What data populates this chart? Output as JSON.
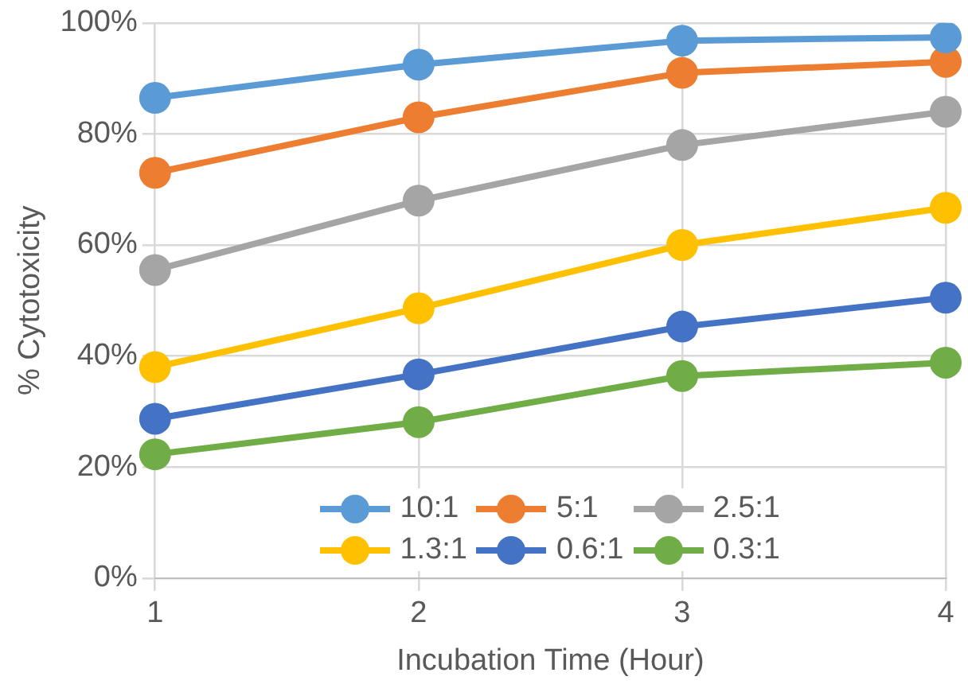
{
  "chart_data": {
    "type": "line",
    "xlabel": "Incubation Time (Hour)",
    "ylabel": "% Cytotoxicity",
    "categories": [
      "1",
      "2",
      "3",
      "4"
    ],
    "series": [
      {
        "name": "10:1",
        "color": "#5b9bd5",
        "values": [
          86.5,
          92.5,
          96.8,
          97.4
        ]
      },
      {
        "name": "5:1",
        "color": "#ed7d31",
        "values": [
          73,
          83,
          91,
          93
        ]
      },
      {
        "name": "2.5:1",
        "color": "#a5a5a5",
        "values": [
          55.5,
          68,
          78,
          84
        ]
      },
      {
        "name": "1.3:1",
        "color": "#ffc000",
        "values": [
          38,
          48.6,
          60,
          66.7
        ]
      },
      {
        "name": "0.6:1",
        "color": "#4472c4",
        "values": [
          28.7,
          36.7,
          45.3,
          50.5
        ]
      },
      {
        "name": "0.3:1",
        "color": "#70ad47",
        "values": [
          22.3,
          28.1,
          36.4,
          38.8
        ]
      }
    ],
    "ylim": [
      0,
      100
    ],
    "yticks": [
      {
        "value": 0,
        "label": "0%"
      },
      {
        "value": 20,
        "label": "20%"
      },
      {
        "value": 40,
        "label": "40%"
      },
      {
        "value": 60,
        "label": "60%"
      },
      {
        "value": 80,
        "label": "80%"
      },
      {
        "value": 100,
        "label": "100%"
      }
    ],
    "grid": true,
    "legend": "bottom",
    "marker": "circle",
    "line_style": "solid"
  }
}
